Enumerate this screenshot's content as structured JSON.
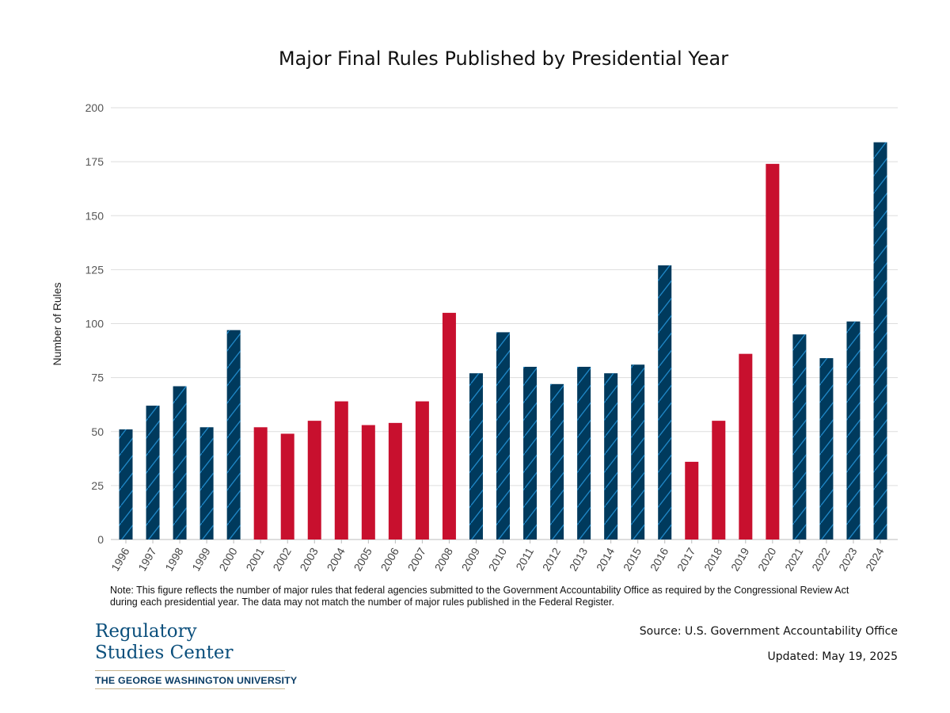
{
  "chart_data": {
    "type": "bar",
    "title": "Major Final Rules Published by Presidential Year",
    "xlabel": "",
    "ylabel": "Number of Rules",
    "ylim": [
      0,
      200
    ],
    "yticks": [
      0,
      25,
      50,
      75,
      100,
      125,
      150,
      175,
      200
    ],
    "grid": true,
    "legend": "none",
    "categories": [
      "1996",
      "1997",
      "1998",
      "1999",
      "2000",
      "2001",
      "2002",
      "2003",
      "2004",
      "2005",
      "2006",
      "2007",
      "2008",
      "2009",
      "2010",
      "2011",
      "2012",
      "2013",
      "2014",
      "2015",
      "2016",
      "2017",
      "2018",
      "2019",
      "2020",
      "2021",
      "2022",
      "2023",
      "2024"
    ],
    "values": [
      51,
      62,
      71,
      52,
      97,
      52,
      49,
      55,
      64,
      53,
      54,
      64,
      105,
      77,
      96,
      80,
      72,
      80,
      77,
      81,
      127,
      36,
      55,
      86,
      174,
      95,
      84,
      101,
      184
    ],
    "bar_colors": [
      "blue",
      "blue",
      "blue",
      "blue",
      "blue",
      "red",
      "red",
      "red",
      "red",
      "red",
      "red",
      "red",
      "red",
      "blue",
      "blue",
      "blue",
      "blue",
      "blue",
      "blue",
      "blue",
      "blue",
      "red",
      "red",
      "red",
      "red",
      "blue",
      "blue",
      "blue",
      "blue"
    ],
    "colors": {
      "blue": "#003a5d",
      "blue_hatch": "#1f87c7",
      "red": "#c8102e"
    }
  },
  "note": "Note: This figure reflects the number of major rules that federal agencies submitted to the Government Accountability Office as required by the Congressional Review Act during each presidential year. The data may not match the number of major rules published in the Federal Register.",
  "source": "Source: U.S. Government Accountability Office",
  "updated": "Updated: May 19, 2025",
  "logo": {
    "line1": "Regulatory",
    "line2": "Studies Center",
    "university": "THE GEORGE WASHINGTON UNIVERSITY"
  }
}
